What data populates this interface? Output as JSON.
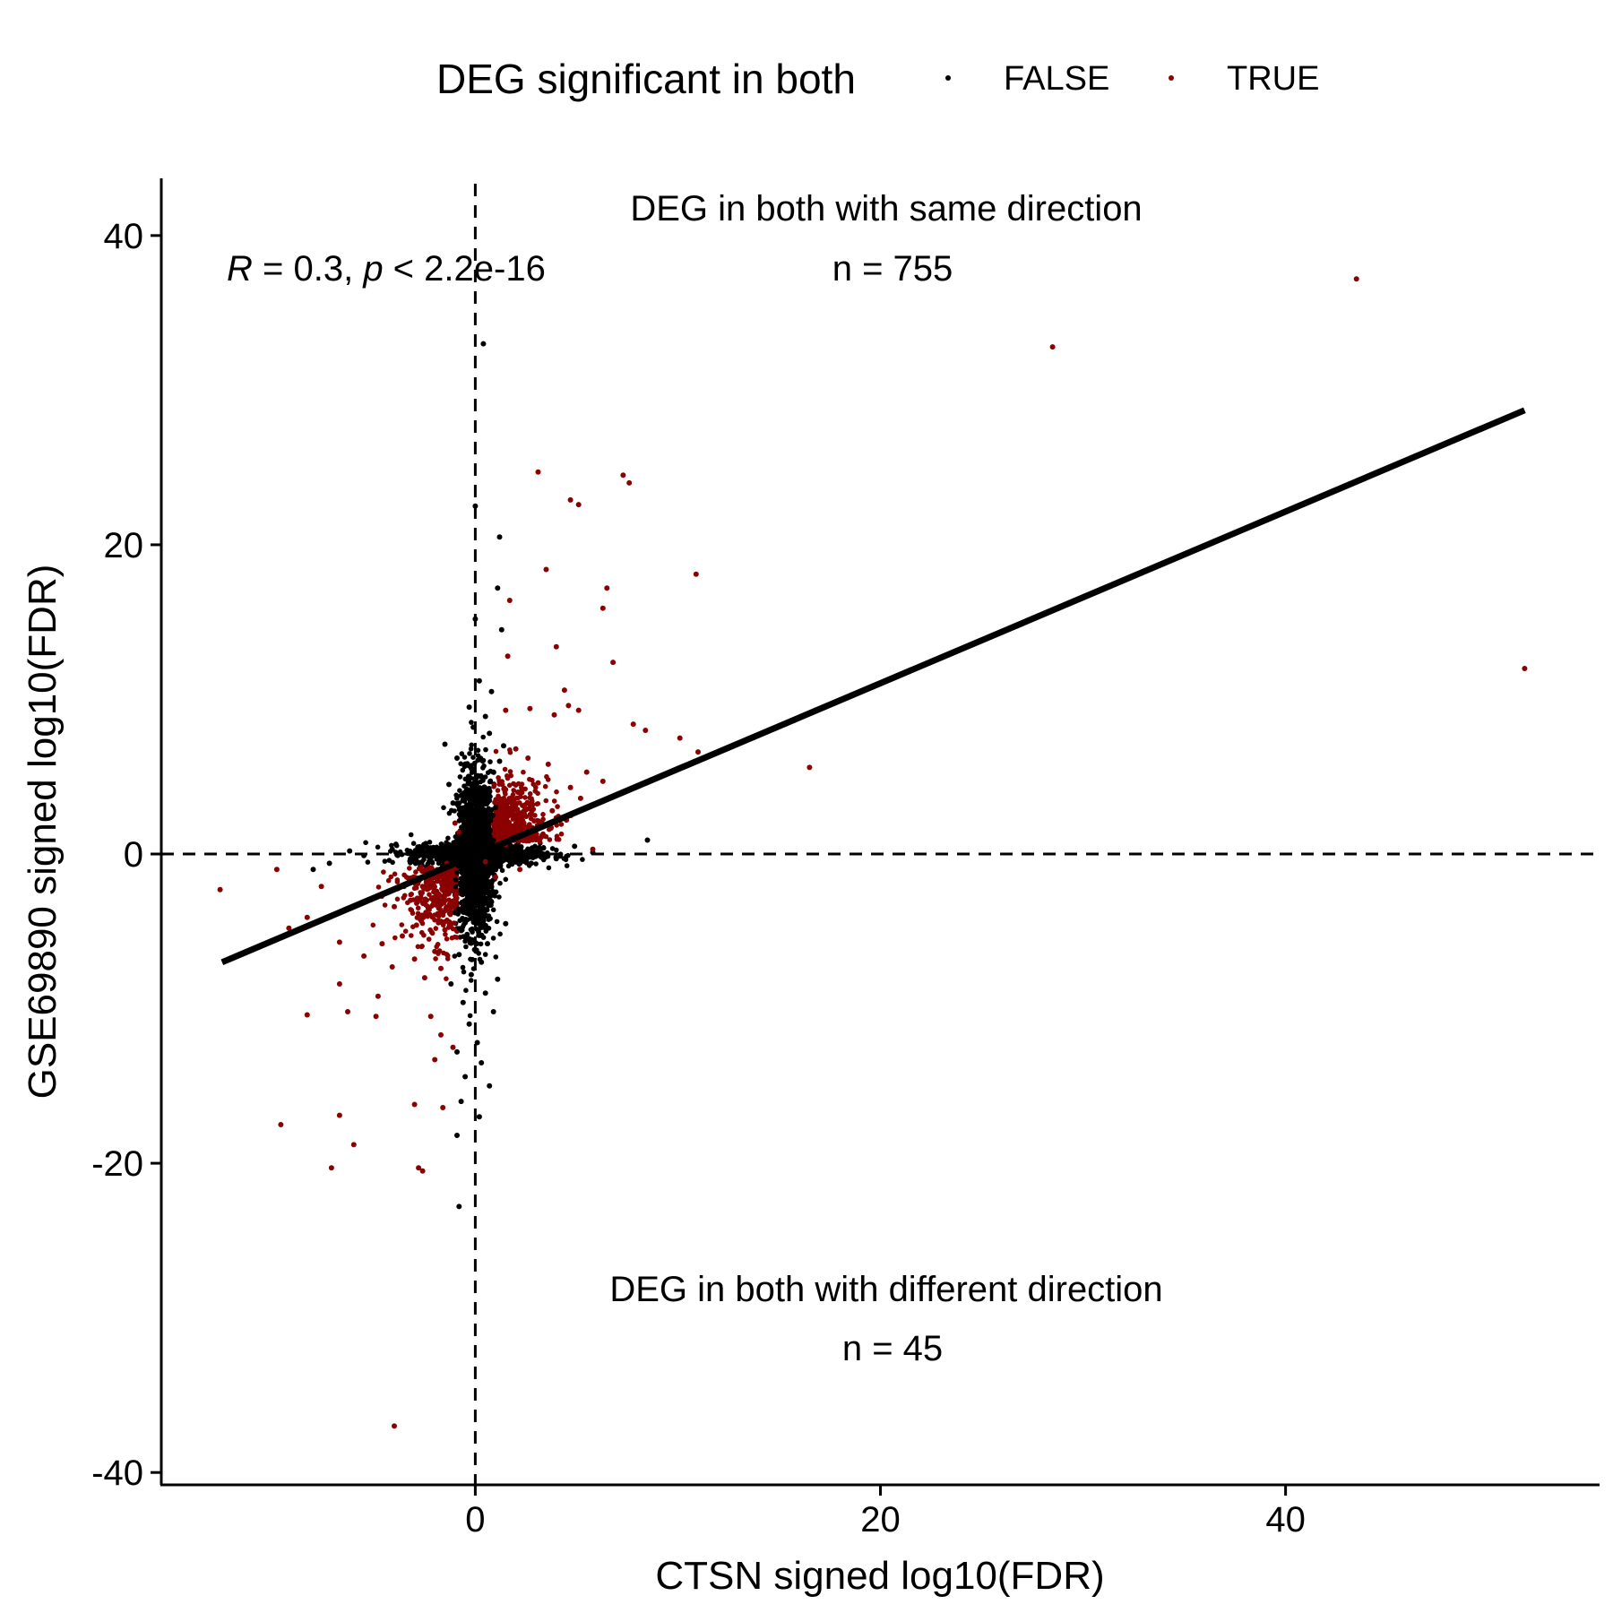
{
  "legend": {
    "title": "DEG significant in both",
    "entries": [
      {
        "label": "FALSE",
        "color": "#000000"
      },
      {
        "label": "TRUE",
        "color": "#8B0000"
      }
    ]
  },
  "annotations": {
    "stats_r": "R",
    "stats_r_rest": " = 0.3, ",
    "stats_p": "p",
    "stats_p_rest": " < 2.2e-16",
    "same_direction_label": "DEG in both with same direction",
    "same_direction_n": "n = 755",
    "diff_direction_label": "DEG in both with different direction",
    "diff_direction_n": "n = 45"
  },
  "chart_data": {
    "type": "scatter",
    "title": "",
    "xlabel": "CTSN signed log10(FDR)",
    "ylabel": "GSE69890 signed log10(FDR)",
    "xlim": [
      -15.5,
      55.5
    ],
    "ylim": [
      -40.8,
      43.7
    ],
    "x_ticks": [
      0,
      20,
      40
    ],
    "y_ticks": [
      -40,
      -20,
      0,
      20,
      40
    ],
    "reference_lines": {
      "x": 0,
      "y": 0,
      "style": "dashed"
    },
    "regression_line": {
      "x": [
        -12.5,
        51.8
      ],
      "y": [
        -7.0,
        28.7
      ]
    },
    "legend_position": "top",
    "series": [
      {
        "name": "FALSE",
        "color": "#000000",
        "points": [
          [
            0.4,
            33.0
          ],
          [
            0.0,
            22.5
          ],
          [
            1.2,
            20.5
          ],
          [
            1.1,
            17.2
          ],
          [
            0.0,
            15.2
          ],
          [
            1.3,
            14.5
          ],
          [
            0.2,
            11.2
          ],
          [
            0.8,
            10.5
          ],
          [
            -0.3,
            9.5
          ],
          [
            0.5,
            8.9
          ],
          [
            -0.1,
            8.2
          ],
          [
            0.7,
            7.8
          ],
          [
            -1.5,
            7.1
          ],
          [
            1.4,
            7.0
          ],
          [
            -0.9,
            6.2
          ],
          [
            1.2,
            6.0
          ],
          [
            0.9,
            5.3
          ],
          [
            -1.3,
            4.5
          ],
          [
            -0.5,
            4.0
          ],
          [
            0.3,
            3.6
          ],
          [
            -1.1,
            3.3
          ],
          [
            1.0,
            3.0
          ],
          [
            -0.7,
            2.8
          ],
          [
            0.6,
            2.4
          ],
          [
            0.1,
            2.1
          ],
          [
            -0.4,
            1.8
          ],
          [
            8.5,
            0.9
          ],
          [
            5.8,
            0.1
          ],
          [
            4.9,
            0.5
          ],
          [
            4.0,
            -0.3
          ],
          [
            3.2,
            0.2
          ],
          [
            2.5,
            -0.1
          ],
          [
            1.9,
            0.3
          ],
          [
            1.5,
            -0.2
          ],
          [
            -2.2,
            0.4
          ],
          [
            -3.0,
            -0.2
          ],
          [
            -4.1,
            0.3
          ],
          [
            -5.5,
            -0.1
          ],
          [
            -6.2,
            0.2
          ],
          [
            -7.2,
            -0.6
          ],
          [
            -8.0,
            -1.0
          ],
          [
            -0.2,
            -1.2
          ],
          [
            0.4,
            -1.8
          ],
          [
            -0.6,
            -2.5
          ],
          [
            0.8,
            -3.1
          ],
          [
            -1.0,
            -3.8
          ],
          [
            0.2,
            -4.3
          ],
          [
            1.5,
            -4.5
          ],
          [
            -0.4,
            -5.2
          ],
          [
            0.6,
            -5.8
          ],
          [
            -0.8,
            -6.5
          ],
          [
            0.3,
            -7.0
          ],
          [
            -0.2,
            -7.8
          ],
          [
            1.1,
            -8.1
          ],
          [
            -1.2,
            -8.4
          ],
          [
            0.5,
            -9.0
          ],
          [
            -0.6,
            -9.6
          ],
          [
            0.9,
            -10.2
          ],
          [
            -0.3,
            -11.0
          ],
          [
            0.1,
            -12.2
          ],
          [
            -0.9,
            -12.8
          ],
          [
            0.3,
            -13.5
          ],
          [
            -0.5,
            -14.4
          ],
          [
            0.7,
            -15.0
          ],
          [
            -0.7,
            -16.0
          ],
          [
            0.2,
            -17.0
          ],
          [
            -0.9,
            -18.2
          ],
          [
            -0.8,
            -22.8
          ]
        ]
      },
      {
        "name": "TRUE",
        "color": "#8B0000",
        "points": [
          [
            43.5,
            37.2
          ],
          [
            28.5,
            32.8
          ],
          [
            51.8,
            12.0
          ],
          [
            3.1,
            24.7
          ],
          [
            7.3,
            24.5
          ],
          [
            7.6,
            24.0
          ],
          [
            4.7,
            22.9
          ],
          [
            5.1,
            22.6
          ],
          [
            10.9,
            18.1
          ],
          [
            3.5,
            18.4
          ],
          [
            6.5,
            17.2
          ],
          [
            1.7,
            16.4
          ],
          [
            6.3,
            15.9
          ],
          [
            4.0,
            13.4
          ],
          [
            6.8,
            12.4
          ],
          [
            1.6,
            12.8
          ],
          [
            4.4,
            10.6
          ],
          [
            5.1,
            9.3
          ],
          [
            4.6,
            9.6
          ],
          [
            3.9,
            9.0
          ],
          [
            1.5,
            9.3
          ],
          [
            2.7,
            9.4
          ],
          [
            7.8,
            8.4
          ],
          [
            8.4,
            8.0
          ],
          [
            10.1,
            7.5
          ],
          [
            11.0,
            6.6
          ],
          [
            16.5,
            5.6
          ],
          [
            2.0,
            6.8
          ],
          [
            2.6,
            6.2
          ],
          [
            3.6,
            5.8
          ],
          [
            5.5,
            5.3
          ],
          [
            6.3,
            4.7
          ],
          [
            3.1,
            4.6
          ],
          [
            4.7,
            4.3
          ],
          [
            2.1,
            4.0
          ],
          [
            5.2,
            3.6
          ],
          [
            2.8,
            3.2
          ],
          [
            3.8,
            2.8
          ],
          [
            1.8,
            2.5
          ],
          [
            4.5,
            2.2
          ],
          [
            2.4,
            1.6
          ],
          [
            3.3,
            1.2
          ],
          [
            1.2,
            1.5
          ],
          [
            2.0,
            0.9
          ],
          [
            1.5,
            0.6
          ],
          [
            -1.4,
            -0.6
          ],
          [
            -2.0,
            -1.2
          ],
          [
            -2.6,
            -2.1
          ],
          [
            -1.8,
            -2.7
          ],
          [
            -3.2,
            -3.0
          ],
          [
            -2.3,
            -3.5
          ],
          [
            -4.0,
            -3.4
          ],
          [
            -2.9,
            -4.6
          ],
          [
            -1.5,
            -4.9
          ],
          [
            -3.6,
            -5.3
          ],
          [
            -4.6,
            -5.8
          ],
          [
            -2.0,
            -6.3
          ],
          [
            -3.0,
            -6.8
          ],
          [
            -1.7,
            -7.4
          ],
          [
            -2.5,
            -8.0
          ],
          [
            -4.1,
            -7.3
          ],
          [
            -5.5,
            -6.6
          ],
          [
            -6.7,
            -5.7
          ],
          [
            -8.3,
            -4.1
          ],
          [
            -9.2,
            -4.8
          ],
          [
            -7.6,
            -2.1
          ],
          [
            -9.8,
            -1.0
          ],
          [
            -12.6,
            -2.3
          ],
          [
            -6.7,
            -8.4
          ],
          [
            -4.8,
            -9.2
          ],
          [
            -2.2,
            -10.5
          ],
          [
            -6.3,
            -10.2
          ],
          [
            -8.3,
            -10.4
          ],
          [
            -4.9,
            -10.5
          ],
          [
            -1.7,
            -11.7
          ],
          [
            -1.1,
            -12.5
          ],
          [
            -2.0,
            -13.3
          ],
          [
            -3.0,
            -16.2
          ],
          [
            -1.6,
            -16.4
          ],
          [
            -6.7,
            -16.9
          ],
          [
            -6.0,
            -18.8
          ],
          [
            -9.6,
            -17.5
          ],
          [
            -7.1,
            -20.3
          ],
          [
            -2.8,
            -20.3
          ],
          [
            -2.6,
            -20.5
          ],
          [
            5.8,
            0.3
          ],
          [
            -4.0,
            -37.0
          ],
          [
            0.5,
            -0.5
          ],
          [
            1.0,
            -1.5
          ],
          [
            -0.8,
            1.4
          ],
          [
            2.2,
            -1.0
          ],
          [
            -1.0,
            2.0
          ]
        ]
      }
    ]
  }
}
